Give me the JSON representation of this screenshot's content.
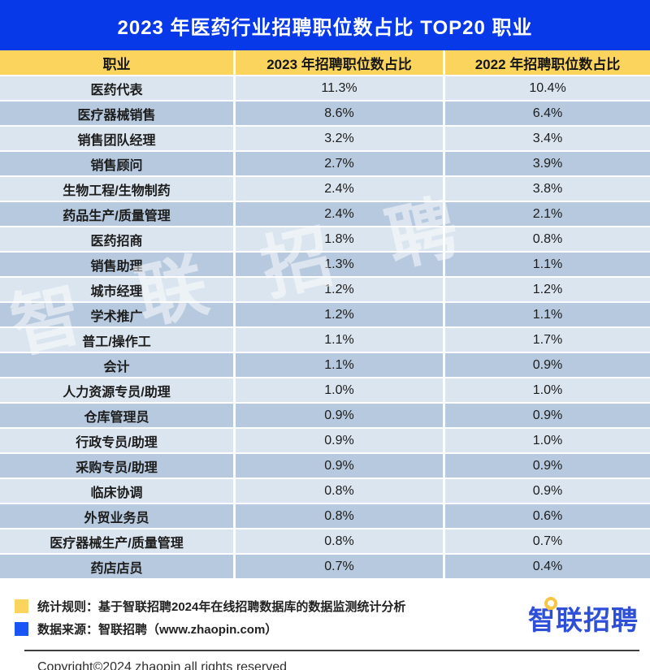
{
  "title": "2023 年医药行业招聘职位数占比 TOP20 职业",
  "watermark": "智联招聘",
  "table": {
    "columns": [
      "职业",
      "2023 年招聘职位数占比",
      "2022 年招聘职位数占比"
    ],
    "rows": [
      {
        "job": "医药代表",
        "share_2023": "11.3%",
        "share_2022": "10.4%"
      },
      {
        "job": "医疗器械销售",
        "share_2023": "8.6%",
        "share_2022": "6.4%"
      },
      {
        "job": "销售团队经理",
        "share_2023": "3.2%",
        "share_2022": "3.4%"
      },
      {
        "job": "销售顾问",
        "share_2023": "2.7%",
        "share_2022": "3.9%"
      },
      {
        "job": "生物工程/生物制药",
        "share_2023": "2.4%",
        "share_2022": "3.8%"
      },
      {
        "job": "药品生产/质量管理",
        "share_2023": "2.4%",
        "share_2022": "2.1%"
      },
      {
        "job": "医药招商",
        "share_2023": "1.8%",
        "share_2022": "0.8%"
      },
      {
        "job": "销售助理",
        "share_2023": "1.3%",
        "share_2022": "1.1%"
      },
      {
        "job": "城市经理",
        "share_2023": "1.2%",
        "share_2022": "1.2%"
      },
      {
        "job": "学术推广",
        "share_2023": "1.2%",
        "share_2022": "1.1%"
      },
      {
        "job": "普工/操作工",
        "share_2023": "1.1%",
        "share_2022": "1.7%"
      },
      {
        "job": "会计",
        "share_2023": "1.1%",
        "share_2022": "0.9%"
      },
      {
        "job": "人力资源专员/助理",
        "share_2023": "1.0%",
        "share_2022": "1.0%"
      },
      {
        "job": "仓库管理员",
        "share_2023": "0.9%",
        "share_2022": "0.9%"
      },
      {
        "job": "行政专员/助理",
        "share_2023": "0.9%",
        "share_2022": "1.0%"
      },
      {
        "job": "采购专员/助理",
        "share_2023": "0.9%",
        "share_2022": "0.9%"
      },
      {
        "job": "临床协调",
        "share_2023": "0.8%",
        "share_2022": "0.9%"
      },
      {
        "job": "外贸业务员",
        "share_2023": "0.8%",
        "share_2022": "0.6%"
      },
      {
        "job": "医疗器械生产/质量管理",
        "share_2023": "0.8%",
        "share_2022": "0.7%"
      },
      {
        "job": "药店店员",
        "share_2023": "0.7%",
        "share_2022": "0.4%"
      }
    ]
  },
  "chart_data": {
    "type": "table",
    "title": "2023 年医药行业招聘职位数占比 TOP20 职业",
    "categories": [
      "医药代表",
      "医疗器械销售",
      "销售团队经理",
      "销售顾问",
      "生物工程/生物制药",
      "药品生产/质量管理",
      "医药招商",
      "销售助理",
      "城市经理",
      "学术推广",
      "普工/操作工",
      "会计",
      "人力资源专员/助理",
      "仓库管理员",
      "行政专员/助理",
      "采购专员/助理",
      "临床协调",
      "外贸业务员",
      "医疗器械生产/质量管理",
      "药店店员"
    ],
    "series": [
      {
        "name": "2023 年招聘职位数占比",
        "values": [
          11.3,
          8.6,
          3.2,
          2.7,
          2.4,
          2.4,
          1.8,
          1.3,
          1.2,
          1.2,
          1.1,
          1.1,
          1.0,
          0.9,
          0.9,
          0.9,
          0.8,
          0.8,
          0.8,
          0.7
        ]
      },
      {
        "name": "2022 年招聘职位数占比",
        "values": [
          10.4,
          6.4,
          3.4,
          3.9,
          3.8,
          2.1,
          0.8,
          1.1,
          1.2,
          1.1,
          1.7,
          0.9,
          1.0,
          0.9,
          1.0,
          0.9,
          0.9,
          0.6,
          0.7,
          0.4
        ]
      }
    ],
    "unit": "%"
  },
  "footer": {
    "legend": [
      {
        "swatch_color": "#fbd45e",
        "text": "统计规则：基于智联招聘2024年在线招聘数据库的数据监测统计分析"
      },
      {
        "swatch_color": "#1b55f5",
        "text": "数据来源：智联招聘（www.zhaopin.com）"
      }
    ],
    "logo_text": "智联招聘",
    "copyright": "Copyright©2024 zhaopin all rights reserved"
  },
  "colors": {
    "banner-blue": "#0839e8",
    "header-yellow": "#fbd45e",
    "row-light": "#dbe5ef",
    "row-dark": "#b6c9de",
    "logo-blue": "#2e4fd8",
    "logo-yellow": "#f6c644",
    "text-dark": "#1c1c1c"
  }
}
